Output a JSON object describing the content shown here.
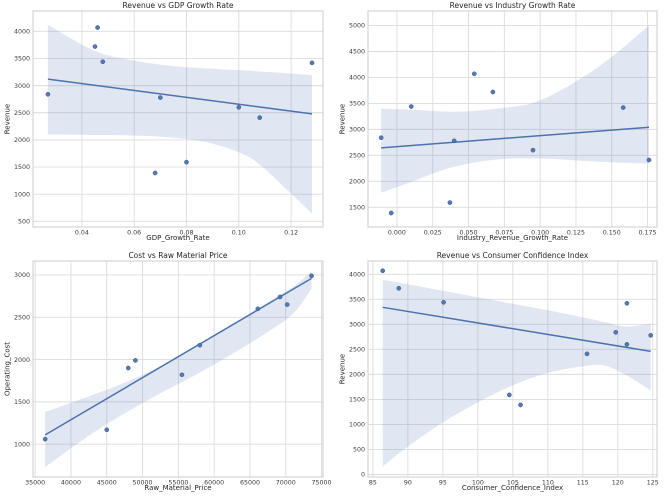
{
  "figure": {
    "background": "#ffffff"
  },
  "style": {
    "accent": "#4c72b0",
    "point_edge": "#3a5a8c",
    "band_color": "#4c72b0",
    "band_opacity": 0.17,
    "grid_color": "#dcdcdc",
    "spine_color": "#cccccc",
    "text_color": "#262626",
    "tick_color": "#3a3a3a"
  },
  "chart_data": [
    {
      "type": "scatter",
      "title": "Revenue vs GDP Growth Rate",
      "xlabel": "GDP_Growth_Rate",
      "ylabel": "Revenue",
      "xlim": [
        0.0213,
        0.1322
      ],
      "ylim": [
        395,
        4375
      ],
      "xticks": [
        "0.04",
        "0.06",
        "0.08",
        "0.10",
        "0.12"
      ],
      "yticks": [
        "500",
        "1000",
        "1500",
        "2000",
        "2500",
        "3000",
        "3500",
        "4000"
      ],
      "grid": true,
      "legend": null,
      "points": [
        [
          0.027,
          2840
        ],
        [
          0.045,
          3720
        ],
        [
          0.046,
          4070
        ],
        [
          0.048,
          3440
        ],
        [
          0.068,
          1390
        ],
        [
          0.07,
          2780
        ],
        [
          0.08,
          1590
        ],
        [
          0.1,
          2600
        ],
        [
          0.108,
          2410
        ],
        [
          0.128,
          3420
        ]
      ],
      "regression": {
        "x": [
          0.027,
          0.128
        ],
        "y": [
          3120,
          2480
        ]
      },
      "band": {
        "x": [
          0.027,
          0.045,
          0.06,
          0.075,
          0.09,
          0.105,
          0.118,
          0.128
        ],
        "hi": [
          4120,
          3640,
          3460,
          3360,
          3310,
          3270,
          3230,
          3190
        ],
        "lo": [
          2100,
          2090,
          2080,
          2040,
          1930,
          1650,
          1100,
          640
        ]
      }
    },
    {
      "type": "scatter",
      "title": "Revenue vs Industry Growth Rate",
      "xlabel": "Industry_Revenue_Growth_Rate",
      "ylabel": "Revenue",
      "xlim": [
        -0.0202,
        0.1816
      ],
      "ylim": [
        1120,
        5280
      ],
      "xticks": [
        "0.000",
        "0.025",
        "0.050",
        "0.075",
        "0.100",
        "0.125",
        "0.150",
        "0.175"
      ],
      "yticks": [
        "1500",
        "2000",
        "2500",
        "3000",
        "3500",
        "4000",
        "4500",
        "5000"
      ],
      "grid": true,
      "legend": null,
      "points": [
        [
          -0.011,
          2840
        ],
        [
          -0.004,
          1390
        ],
        [
          0.01,
          3440
        ],
        [
          0.037,
          1590
        ],
        [
          0.04,
          2780
        ],
        [
          0.054,
          4070
        ],
        [
          0.067,
          3720
        ],
        [
          0.095,
          2600
        ],
        [
          0.158,
          3420
        ],
        [
          0.176,
          2410
        ]
      ],
      "regression": {
        "x": [
          -0.011,
          0.176
        ],
        "y": [
          2645,
          3040
        ]
      },
      "band": {
        "x": [
          -0.011,
          0.01,
          0.04,
          0.07,
          0.1,
          0.14,
          0.176
        ],
        "hi": [
          3400,
          3380,
          3340,
          3400,
          3560,
          4190,
          5000
        ],
        "lo": [
          1780,
          1990,
          2280,
          2420,
          2440,
          2380,
          2340
        ]
      }
    },
    {
      "type": "scatter",
      "title": "Cost vs Raw Material Price",
      "xlabel": "Raw_Material_Price",
      "ylabel": "Operating_Cost",
      "xlim": [
        34700,
        75200
      ],
      "ylim": [
        612,
        3165
      ],
      "xticks": [
        "35000",
        "40000",
        "45000",
        "50000",
        "55000",
        "60000",
        "65000",
        "70000",
        "75000"
      ],
      "yticks": [
        "1000",
        "1500",
        "2000",
        "2500",
        "3000"
      ],
      "grid": true,
      "legend": null,
      "points": [
        [
          36400,
          1060
        ],
        [
          45000,
          1170
        ],
        [
          48000,
          1900
        ],
        [
          49000,
          1990
        ],
        [
          55500,
          1820
        ],
        [
          58000,
          2170
        ],
        [
          66100,
          2600
        ],
        [
          69200,
          2740
        ],
        [
          70200,
          2650
        ],
        [
          73600,
          2990
        ]
      ],
      "regression": {
        "x": [
          36400,
          73600
        ],
        "y": [
          1110,
          2960
        ]
      },
      "band": {
        "x": [
          36400,
          42000,
          47000,
          52000,
          57000,
          62000,
          67000,
          71000,
          73600
        ],
        "hi": [
          1380,
          1550,
          1710,
          1900,
          2130,
          2390,
          2650,
          2860,
          3040
        ],
        "lo": [
          730,
          1070,
          1340,
          1580,
          1800,
          2040,
          2300,
          2540,
          2840
        ]
      }
    },
    {
      "type": "scatter",
      "title": "Revenue vs Consumer Confidence Index",
      "xlabel": "Consumer_Confidence_Index",
      "ylabel": "Revenue",
      "xlim": [
        84.3,
        125.6
      ],
      "ylim": [
        -50,
        4265
      ],
      "xticks": [
        "85",
        "90",
        "95",
        "100",
        "105",
        "110",
        "115",
        "120",
        "125"
      ],
      "yticks": [
        "0",
        "500",
        "1000",
        "1500",
        "2000",
        "2500",
        "3000",
        "3500",
        "4000"
      ],
      "grid": true,
      "legend": null,
      "points": [
        [
          86.4,
          4070
        ],
        [
          88.7,
          3720
        ],
        [
          95.1,
          3440
        ],
        [
          104.5,
          1590
        ],
        [
          106.1,
          1390
        ],
        [
          115.6,
          2410
        ],
        [
          119.7,
          2840
        ],
        [
          121.3,
          3420
        ],
        [
          121.3,
          2600
        ],
        [
          124.7,
          2780
        ]
      ],
      "regression": {
        "x": [
          86.4,
          124.7
        ],
        "y": [
          3340,
          2460
        ]
      },
      "band": {
        "x": [
          86.4,
          90,
          95,
          100,
          105,
          110,
          115,
          118,
          121,
          124.7
        ],
        "hi": [
          3890,
          3800,
          3670,
          3540,
          3410,
          3280,
          3140,
          3050,
          2960,
          3010
        ],
        "lo": [
          160,
          560,
          1040,
          1440,
          1780,
          2030,
          2160,
          2180,
          2000,
          1680
        ]
      }
    }
  ]
}
